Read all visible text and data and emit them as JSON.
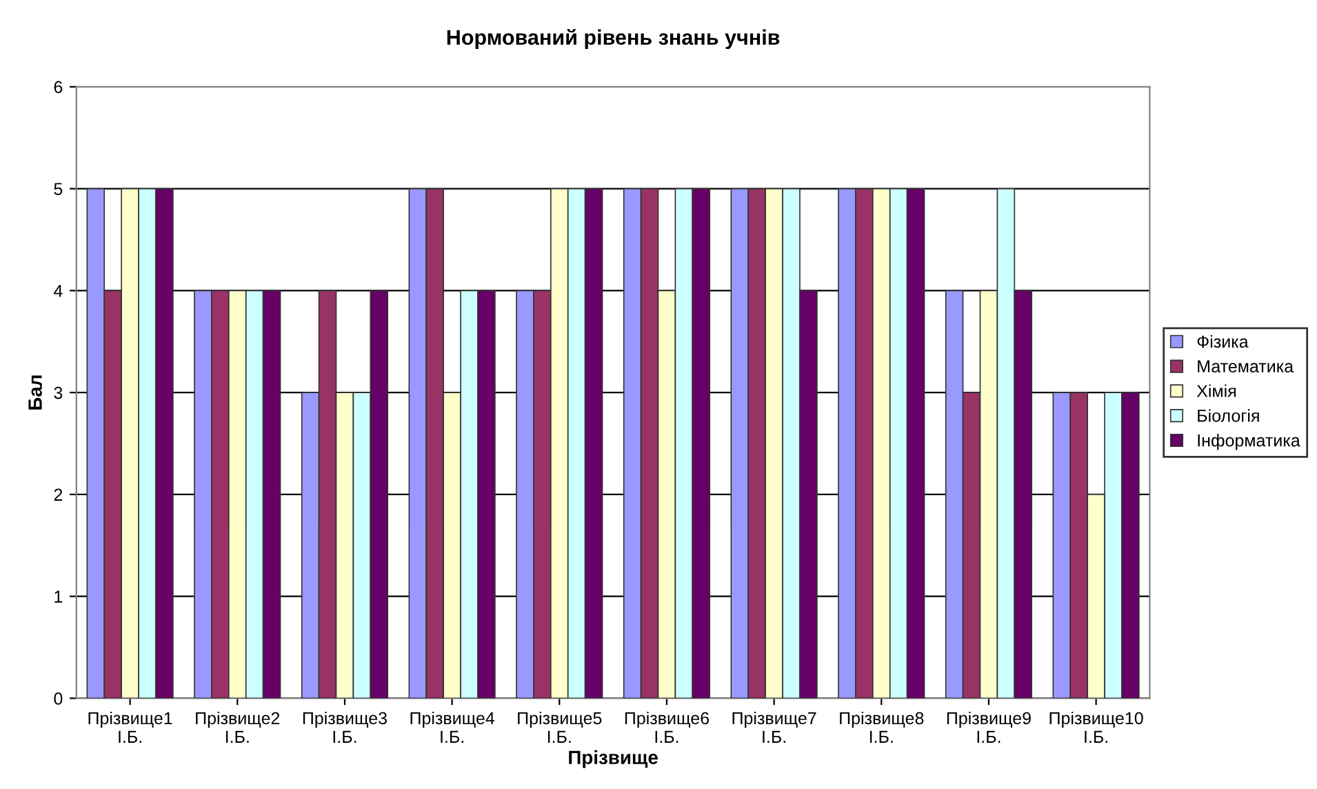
{
  "chart_data": {
    "type": "bar",
    "title": "Нормований рівень знань учнів",
    "xlabel": "Прізвище",
    "ylabel": "Бал",
    "categories": [
      "Прізвище1\nІ.Б.",
      "Прізвище2\nІ.Б.",
      "Прізвище3\nІ.Б.",
      "Прізвище4\nІ.Б.",
      "Прізвище5\nІ.Б.",
      "Прізвище6\nІ.Б.",
      "Прізвище7\nІ.Б.",
      "Прізвище8\nІ.Б.",
      "Прізвище9\nІ.Б.",
      "Прізвище10\nІ.Б."
    ],
    "series": [
      {
        "name": "Фізика",
        "color": "#9999ff",
        "values": [
          5,
          4,
          3,
          5,
          4,
          5,
          5,
          5,
          4,
          3
        ]
      },
      {
        "name": "Математика",
        "color": "#993366",
        "values": [
          4,
          4,
          4,
          5,
          4,
          5,
          5,
          5,
          3,
          3
        ]
      },
      {
        "name": "Хімія",
        "color": "#ffffcc",
        "values": [
          5,
          4,
          3,
          3,
          5,
          4,
          5,
          5,
          4,
          2
        ]
      },
      {
        "name": "Біологія",
        "color": "#ccffff",
        "values": [
          5,
          4,
          3,
          4,
          5,
          5,
          5,
          5,
          5,
          3
        ]
      },
      {
        "name": "Інформатика",
        "color": "#660066",
        "values": [
          5,
          4,
          4,
          4,
          5,
          5,
          4,
          5,
          4,
          3
        ]
      }
    ],
    "ylim": [
      0,
      6
    ],
    "yticks": [
      0,
      1,
      2,
      3,
      4,
      5,
      6
    ],
    "grid": "y",
    "legend": "right"
  }
}
